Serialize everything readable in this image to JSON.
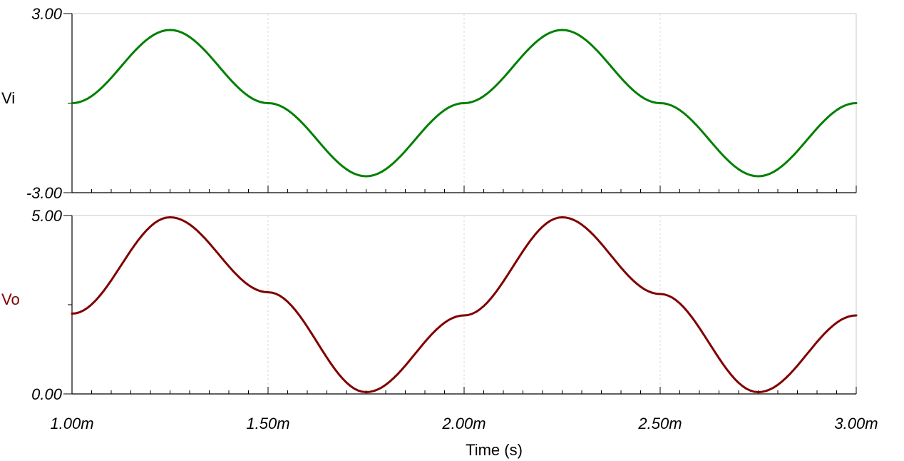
{
  "chart_data": {
    "type": "line",
    "xlabel": "Time (s)",
    "xlim": [
      0.001,
      0.003
    ],
    "x_tick_labels": [
      "1.00m",
      "1.50m",
      "2.00m",
      "2.50m",
      "3.00m"
    ],
    "x_ticks": [
      0.001,
      0.0015,
      0.002,
      0.0025,
      0.003
    ],
    "grid": true,
    "panels": [
      {
        "series_name": "Vi",
        "color": "#008000",
        "ylim": [
          -3,
          3
        ],
        "y_tick_labels": [
          "3.00",
          "-3.00"
        ],
        "y_ticks": [
          3,
          -3
        ],
        "x": [
          0.001,
          0.00125,
          0.0015,
          0.00175,
          0.002,
          0.00225,
          0.0025,
          0.00275,
          0.003
        ],
        "values": [
          0,
          2.45,
          0,
          -2.45,
          0,
          2.45,
          0,
          -2.45,
          0
        ]
      },
      {
        "series_name": "Vo",
        "color": "#800000",
        "ylim": [
          0,
          5
        ],
        "y_tick_labels": [
          "5.00",
          "0.00"
        ],
        "y_ticks": [
          5,
          0
        ],
        "x": [
          0.001,
          0.00125,
          0.0015,
          0.00175,
          0.002,
          0.00225,
          0.0025,
          0.00275,
          0.003
        ],
        "values": [
          2.25,
          4.95,
          2.85,
          0.05,
          2.2,
          4.95,
          2.8,
          0.05,
          2.2
        ]
      }
    ]
  }
}
